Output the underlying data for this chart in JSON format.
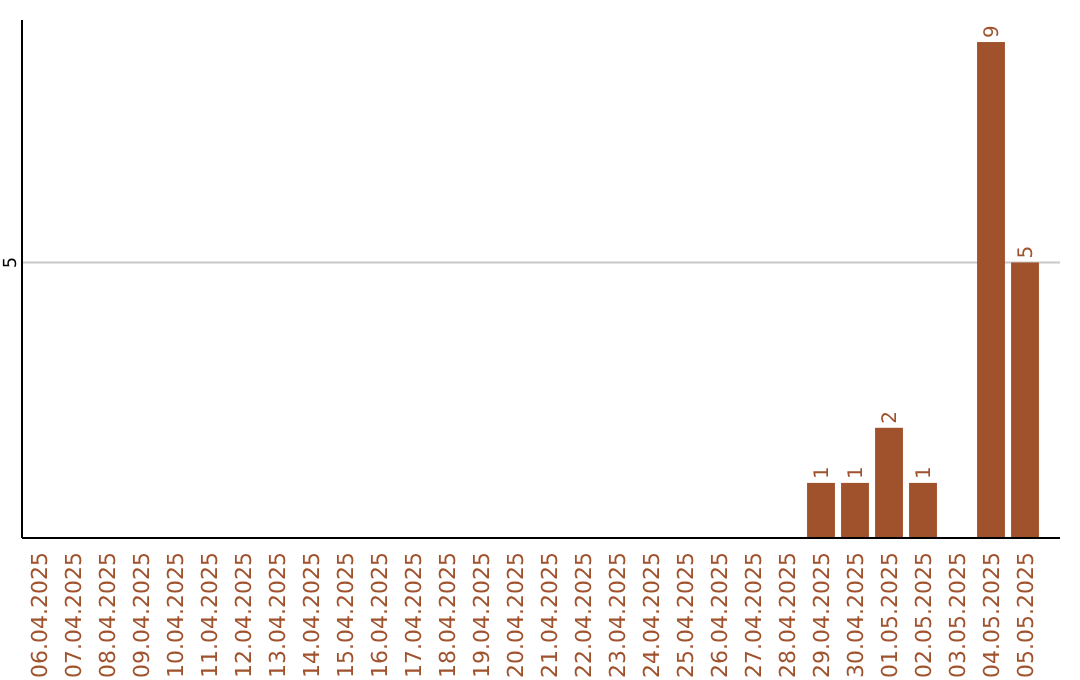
{
  "chart_data": {
    "type": "bar",
    "categories": [
      "06.04.2025",
      "07.04.2025",
      "08.04.2025",
      "09.04.2025",
      "10.04.2025",
      "11.04.2025",
      "12.04.2025",
      "13.04.2025",
      "14.04.2025",
      "15.04.2025",
      "16.04.2025",
      "17.04.2025",
      "18.04.2025",
      "19.04.2025",
      "20.04.2025",
      "21.04.2025",
      "22.04.2025",
      "23.04.2025",
      "24.04.2025",
      "25.04.2025",
      "26.04.2025",
      "27.04.2025",
      "28.04.2025",
      "29.04.2025",
      "30.04.2025",
      "01.05.2025",
      "02.05.2025",
      "03.05.2025",
      "04.05.2025",
      "05.05.2025"
    ],
    "values": [
      null,
      null,
      null,
      null,
      null,
      null,
      null,
      null,
      null,
      null,
      null,
      null,
      null,
      null,
      null,
      null,
      null,
      null,
      null,
      null,
      null,
      null,
      null,
      1,
      1,
      2,
      1,
      null,
      9,
      5
    ],
    "color": "#a0522d",
    "ylim": [
      0,
      9.4
    ],
    "yticks": [
      5
    ],
    "grid": "y",
    "data_labels": true
  }
}
